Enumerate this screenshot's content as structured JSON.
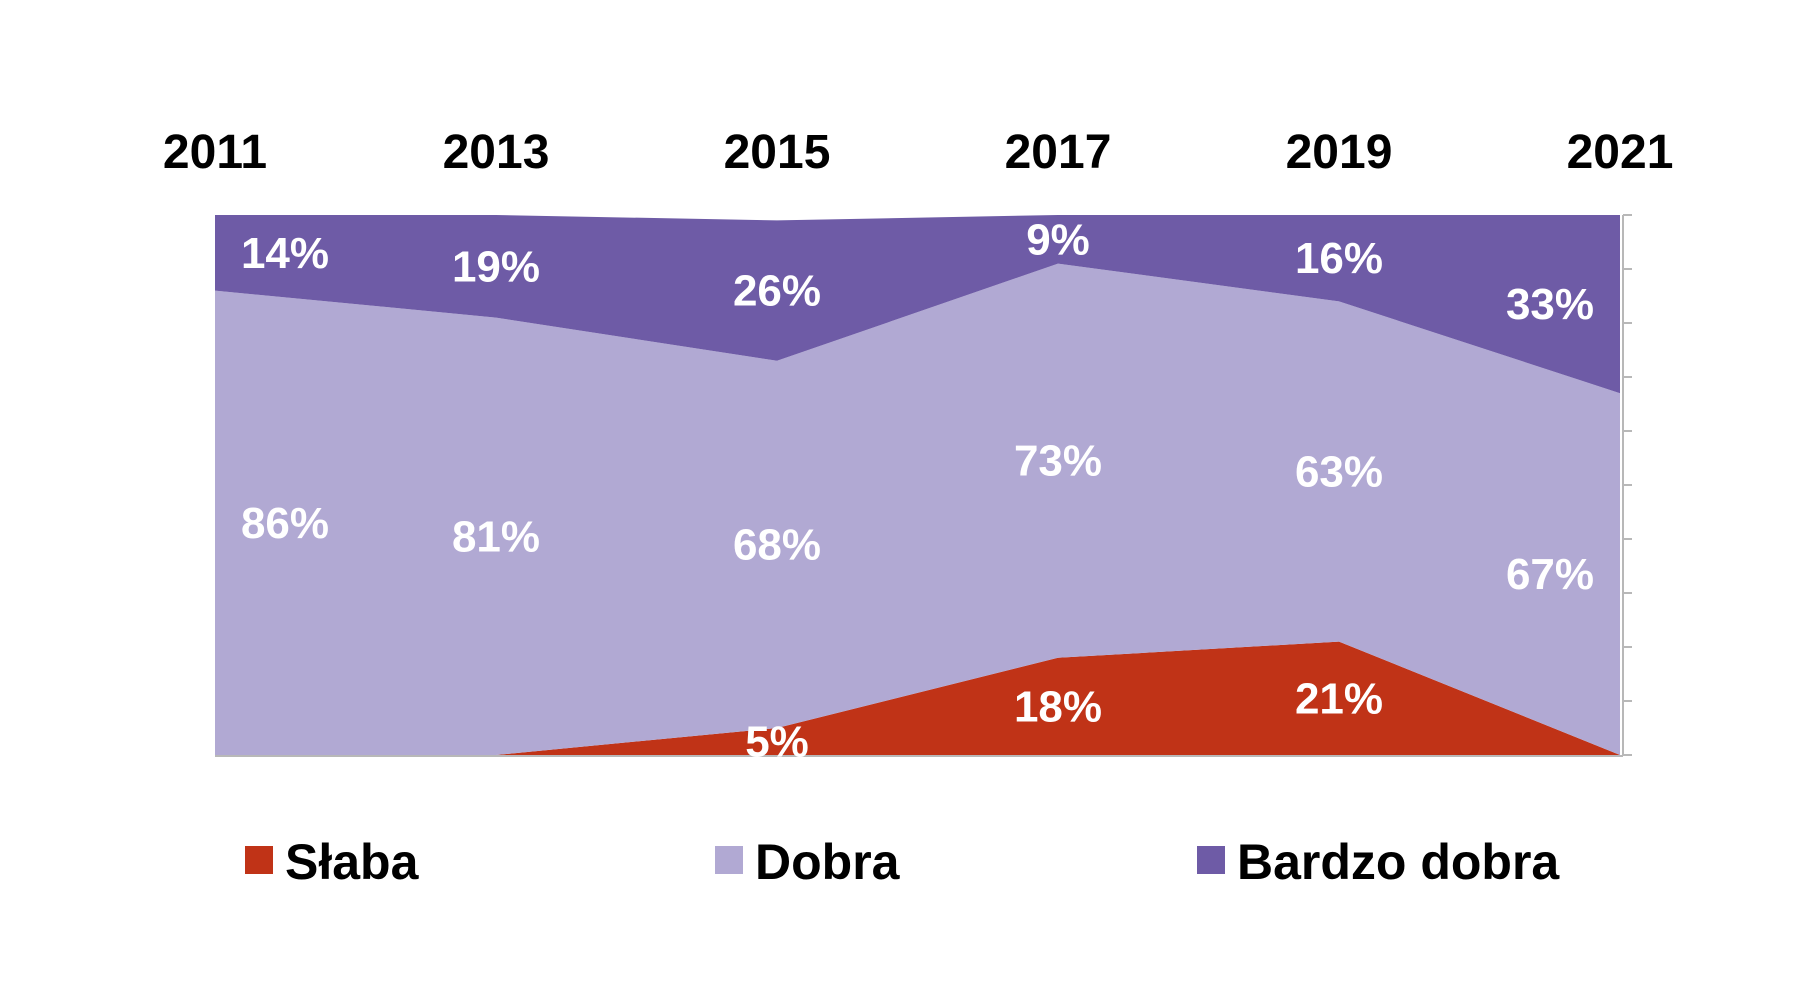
{
  "chart_data": {
    "type": "area",
    "stacked": true,
    "percent": true,
    "categories": [
      "2011",
      "2013",
      "2015",
      "2017",
      "2019",
      "2021"
    ],
    "series": [
      {
        "name": "Słaba",
        "values": [
          0,
          0,
          5,
          18,
          21,
          0
        ],
        "labels": [
          "",
          "",
          "5%",
          "18%",
          "21%",
          ""
        ],
        "color": "#c03317"
      },
      {
        "name": "Dobra",
        "values": [
          86,
          81,
          68,
          73,
          63,
          67
        ],
        "labels": [
          "86%",
          "81%",
          "68%",
          "73%",
          "63%",
          "67%"
        ],
        "color": "#b1a9d3"
      },
      {
        "name": "Bardzo dobra",
        "values": [
          14,
          19,
          26,
          9,
          16,
          33
        ],
        "labels": [
          "14%",
          "19%",
          "26%",
          "9%",
          "16%",
          "33%"
        ],
        "color": "#6e5ba6"
      }
    ],
    "ylim": [
      0,
      100
    ],
    "y_ticks_count": 10,
    "category_axis_position": "top",
    "legend_position": "bottom",
    "grid": false
  }
}
